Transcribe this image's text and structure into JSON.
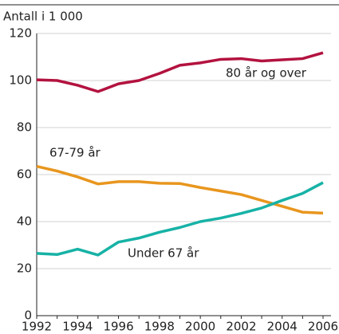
{
  "chart_data": {
    "type": "line",
    "y_axis_label": "Antall i 1 000",
    "x": [
      1992,
      1993,
      1994,
      1995,
      1996,
      1997,
      1998,
      1999,
      2000,
      2001,
      2002,
      2003,
      2004,
      2005,
      2006
    ],
    "series": [
      {
        "name": "80 år og over",
        "color": "#b3123f",
        "values": [
          100.3,
          100,
          98,
          95.3,
          98.6,
          100,
          103,
          106.5,
          107.5,
          109,
          109.3,
          108.3,
          108.8,
          109.3,
          111.8
        ]
      },
      {
        "name": "67-79 år",
        "color": "#e8961e",
        "values": [
          63.5,
          61.5,
          59,
          56,
          57,
          57,
          56.3,
          56.2,
          54.5,
          53,
          51.5,
          49,
          46.5,
          44,
          43.6
        ]
      },
      {
        "name": "Under 67 år",
        "color": "#17b2a6",
        "values": [
          26.5,
          26,
          28.3,
          25.8,
          31.3,
          33,
          35.5,
          37.5,
          40,
          41.5,
          43.5,
          45.8,
          49,
          52,
          56.6
        ]
      }
    ],
    "xlim": [
      1992,
      2006
    ],
    "xticks": [
      1992,
      1994,
      1996,
      1998,
      2000,
      2002,
      2004,
      2006
    ],
    "ylim": [
      0,
      120
    ],
    "yticks": [
      0,
      20,
      40,
      60,
      80,
      100,
      120
    ],
    "grid": true
  }
}
